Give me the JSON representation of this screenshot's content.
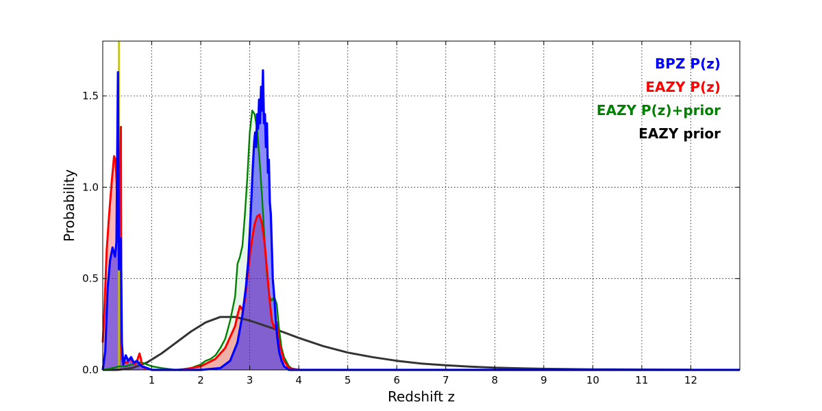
{
  "chart_data": {
    "type": "line",
    "title": "",
    "xlabel": "Redshift z",
    "ylabel": "Probability",
    "xlim": [
      0,
      13
    ],
    "ylim": [
      0,
      1.8
    ],
    "xticks": [
      1,
      2,
      3,
      4,
      5,
      6,
      7,
      8,
      9,
      10,
      11,
      12
    ],
    "xtick_labels": [
      "1",
      "2",
      "3",
      "4",
      "5",
      "6",
      "7",
      "8",
      "9",
      "10",
      "11",
      "12"
    ],
    "yticks": [
      0,
      0.5,
      1.0,
      1.5
    ],
    "ytick_labels": [
      "0.0",
      "0.5",
      "1.0",
      "1.5"
    ],
    "grid": true,
    "legend_position": "top-right",
    "vertical_marker": {
      "x": 0.33,
      "color": "#bfbf00"
    },
    "series": [
      {
        "name": "BPZ P(z)",
        "color": "#0000ff",
        "fill": "#0000ff",
        "x": [
          0.0,
          0.05,
          0.1,
          0.15,
          0.2,
          0.25,
          0.28,
          0.31,
          0.33,
          0.35,
          0.37,
          0.39,
          0.42,
          0.47,
          0.52,
          0.58,
          0.63,
          0.7,
          0.75,
          0.8,
          0.9,
          1.0,
          1.2,
          2.0,
          2.4,
          2.6,
          2.75,
          2.85,
          2.92,
          2.97,
          3.0,
          3.03,
          3.06,
          3.09,
          3.11,
          3.13,
          3.15,
          3.17,
          3.19,
          3.21,
          3.23,
          3.25,
          3.27,
          3.29,
          3.31,
          3.33,
          3.35,
          3.37,
          3.39,
          3.41,
          3.43,
          3.45,
          3.47,
          3.5,
          3.53,
          3.56,
          3.6,
          3.65,
          3.7,
          3.8,
          4.0,
          13.0
        ],
        "y": [
          0.0,
          0.1,
          0.45,
          0.6,
          0.67,
          0.62,
          0.7,
          1.63,
          0.55,
          0.66,
          0.72,
          0.15,
          0.03,
          0.08,
          0.05,
          0.07,
          0.04,
          0.05,
          0.03,
          0.02,
          0.01,
          0.0,
          0.0,
          0.0,
          0.01,
          0.05,
          0.15,
          0.3,
          0.45,
          0.6,
          0.75,
          0.92,
          1.1,
          1.25,
          1.3,
          1.22,
          1.4,
          1.32,
          1.48,
          1.35,
          1.55,
          1.42,
          1.64,
          1.35,
          1.4,
          1.22,
          1.35,
          1.08,
          1.15,
          0.92,
          0.85,
          0.68,
          0.5,
          0.4,
          0.28,
          0.18,
          0.1,
          0.05,
          0.02,
          0.0,
          0.0,
          0.0
        ]
      },
      {
        "name": "EAZY P(z)",
        "color": "#ff0000",
        "fill": "#ff0000",
        "x": [
          0.0,
          0.03,
          0.08,
          0.13,
          0.18,
          0.23,
          0.26,
          0.29,
          0.31,
          0.33,
          0.35,
          0.37,
          0.38,
          0.39,
          0.41,
          0.45,
          0.5,
          0.55,
          0.6,
          0.65,
          0.7,
          0.75,
          0.78,
          0.8,
          0.85,
          0.9,
          1.0,
          1.2,
          1.6,
          2.0,
          2.3,
          2.5,
          2.6,
          2.7,
          2.75,
          2.8,
          2.85,
          2.9,
          2.95,
          3.0,
          3.05,
          3.1,
          3.15,
          3.2,
          3.25,
          3.3,
          3.35,
          3.4,
          3.45,
          3.5,
          3.55,
          3.6,
          3.7,
          3.8,
          4.0,
          13.0
        ],
        "y": [
          0.15,
          0.3,
          0.65,
          0.85,
          1.02,
          1.17,
          1.15,
          1.0,
          0.8,
          0.7,
          0.9,
          1.33,
          0.15,
          0.06,
          0.04,
          0.04,
          0.04,
          0.06,
          0.05,
          0.03,
          0.05,
          0.09,
          0.06,
          0.02,
          0.01,
          0.01,
          0.0,
          0.0,
          0.0,
          0.02,
          0.06,
          0.12,
          0.18,
          0.24,
          0.3,
          0.35,
          0.33,
          0.38,
          0.5,
          0.62,
          0.72,
          0.8,
          0.84,
          0.85,
          0.8,
          0.7,
          0.55,
          0.4,
          0.27,
          0.23,
          0.26,
          0.15,
          0.05,
          0.01,
          0.0,
          0.0
        ]
      },
      {
        "name": "EAZY P(z)+prior",
        "color": "#008000",
        "fill": "#99cc99",
        "x": [
          0.0,
          0.2,
          0.35,
          0.45,
          0.6,
          0.7,
          0.8,
          1.0,
          1.2,
          1.5,
          1.8,
          2.0,
          2.1,
          2.2,
          2.3,
          2.4,
          2.5,
          2.6,
          2.7,
          2.75,
          2.8,
          2.85,
          2.9,
          2.95,
          3.0,
          3.05,
          3.1,
          3.15,
          3.2,
          3.25,
          3.3,
          3.35,
          3.4,
          3.45,
          3.5,
          3.55,
          3.6,
          3.65,
          3.7,
          3.8,
          3.9,
          4.0,
          13.0
        ],
        "y": [
          0.0,
          0.01,
          0.02,
          0.02,
          0.03,
          0.04,
          0.04,
          0.02,
          0.01,
          0.0,
          0.01,
          0.03,
          0.05,
          0.06,
          0.08,
          0.12,
          0.17,
          0.27,
          0.4,
          0.58,
          0.62,
          0.68,
          0.85,
          1.05,
          1.3,
          1.42,
          1.4,
          1.32,
          1.15,
          0.95,
          0.72,
          0.52,
          0.4,
          0.38,
          0.4,
          0.36,
          0.22,
          0.12,
          0.07,
          0.02,
          0.0,
          0.0,
          0.0
        ]
      },
      {
        "name": "EAZY prior",
        "color": "#333333",
        "fill": "none",
        "x": [
          0.0,
          0.3,
          0.6,
          0.9,
          1.2,
          1.5,
          1.8,
          2.1,
          2.4,
          2.7,
          3.0,
          3.5,
          4.0,
          4.5,
          5.0,
          5.5,
          6.0,
          6.5,
          7.0,
          7.5,
          8.0,
          9.0,
          10.0,
          11.0,
          12.0
        ],
        "y": [
          0.0,
          0.0,
          0.01,
          0.04,
          0.09,
          0.15,
          0.21,
          0.26,
          0.29,
          0.29,
          0.27,
          0.225,
          0.175,
          0.13,
          0.095,
          0.07,
          0.05,
          0.035,
          0.025,
          0.018,
          0.012,
          0.006,
          0.003,
          0.002,
          0.001
        ]
      }
    ]
  }
}
